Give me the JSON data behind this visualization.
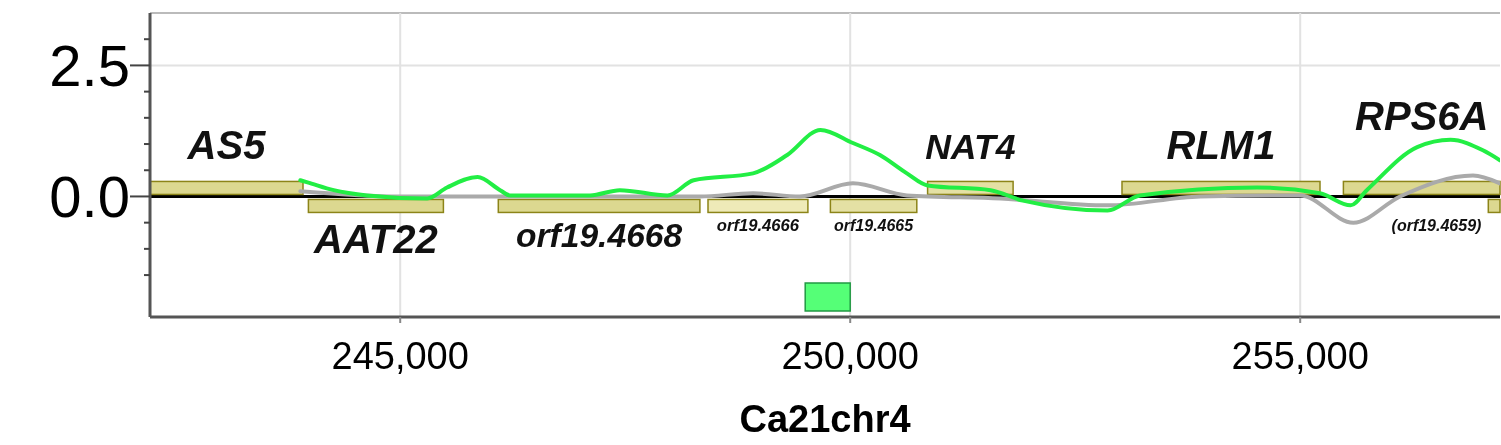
{
  "chart_data": {
    "type": "line",
    "xlabel": "Ca21chr4",
    "xlim": [
      242220,
      257220
    ],
    "ylim": [
      -2.3,
      3.5
    ],
    "xticks": [
      {
        "value": 245000,
        "label": "245,000"
      },
      {
        "value": 250000,
        "label": "250,000"
      },
      {
        "value": 255000,
        "label": "255,000"
      }
    ],
    "yticks": [
      {
        "value": -1.5,
        "label": null
      },
      {
        "value": -1,
        "label": null
      },
      {
        "value": -0.5,
        "label": null
      },
      {
        "value": 0,
        "label": "0.0"
      },
      {
        "value": 0.5,
        "label": null
      },
      {
        "value": 1,
        "label": null
      },
      {
        "value": 1.5,
        "label": null
      },
      {
        "value": 2,
        "label": null
      },
      {
        "value": 2.5,
        "label": "2.5"
      },
      {
        "value": 3,
        "label": null
      }
    ],
    "grid": true,
    "marker": "none",
    "line_style": "solid",
    "series": [
      {
        "color": "#aaaaaa",
        "x": [
          243890,
          245000,
          248330,
          248920,
          249440,
          250030,
          250630,
          251670,
          252860,
          253890,
          255000,
          255590,
          256110,
          256920,
          257220
        ],
        "values": [
          0.1,
          0,
          0,
          0.06,
          0,
          0.25,
          0.02,
          -0.04,
          -0.17,
          0,
          0.02,
          -0.5,
          0,
          0.4,
          0.25
        ]
      },
      {
        "color": "#22ee44",
        "x": [
          243890,
          243970,
          244260,
          244630,
          245300,
          245520,
          245860,
          246110,
          246220,
          247110,
          247440,
          247970,
          248260,
          248920,
          249300,
          249670,
          250030,
          250330,
          250630,
          250860,
          251560,
          251920,
          252860,
          253220,
          254520,
          255220,
          255560,
          255740,
          256300,
          256670,
          257030,
          257220
        ],
        "values": [
          0.31,
          0.27,
          0.12,
          0.02,
          -0.04,
          0.17,
          0.37,
          0.12,
          0.02,
          0.02,
          0.12,
          0.02,
          0.31,
          0.44,
          0.79,
          1.27,
          1.02,
          0.79,
          0.44,
          0.21,
          0.12,
          -0.08,
          -0.27,
          0.02,
          0.17,
          0.06,
          -0.17,
          0.12,
          0.94,
          1.08,
          0.88,
          0.69
        ]
      }
    ],
    "ref_lines": [
      {
        "axis": "y",
        "value": 0,
        "color": "#000000"
      }
    ],
    "bands": [
      {
        "axis": "x",
        "from": 242220,
        "to": 243920,
        "label": "AS5",
        "color": "#dcd890"
      },
      {
        "axis": "x",
        "from": 245480,
        "to": 243980,
        "label": "AAT22",
        "color": "#dcd890"
      },
      {
        "axis": "x",
        "from": 248330,
        "to": 246090,
        "label": "orf19.4668",
        "color": "#dcd890"
      },
      {
        "axis": "x",
        "from": 249530,
        "to": 248420,
        "label": "orf19.4666",
        "color": "#eeeab8"
      },
      {
        "axis": "x",
        "from": 250740,
        "to": 249780,
        "label": "orf19.4665",
        "color": "#e4e0a4"
      },
      {
        "axis": "x",
        "from": 250860,
        "to": 251810,
        "label": "NAT4",
        "color": "#e4e0a4"
      },
      {
        "axis": "x",
        "from": 253020,
        "to": 255220,
        "label": "RLM1",
        "color": "#dcd890"
      },
      {
        "axis": "x",
        "from": 255480,
        "to": 257220,
        "label": "RPS6A",
        "color": "#dcd890"
      },
      {
        "axis": "x",
        "from": 257220,
        "to": 257090,
        "label": "(orf19.4659)",
        "color": "#dcd890"
      },
      {
        "axis": "x",
        "from": 249500,
        "to": 250000,
        "color": "#55ff77"
      }
    ]
  }
}
